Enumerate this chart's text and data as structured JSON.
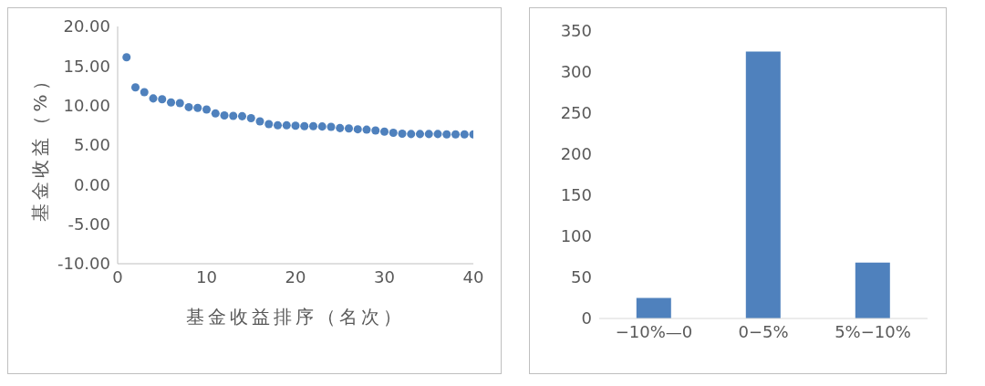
{
  "chart_data": [
    {
      "type": "scatter",
      "xlabel": "基金收益排序（名次）",
      "ylabel": "基金收益（%）",
      "x": [
        1,
        2,
        3,
        4,
        5,
        6,
        7,
        8,
        9,
        10,
        11,
        12,
        13,
        14,
        15,
        16,
        17,
        18,
        19,
        20,
        21,
        22,
        23,
        24,
        25,
        26,
        27,
        28,
        29,
        30,
        31,
        32,
        33,
        34,
        35,
        36,
        37,
        38,
        39,
        40
      ],
      "series": [
        {
          "color": "#4f81bd",
          "values": [
            16.1,
            12.3,
            11.7,
            10.9,
            10.8,
            10.4,
            10.3,
            9.8,
            9.7,
            9.5,
            9.0,
            8.75,
            8.7,
            8.65,
            8.4,
            8.0,
            7.65,
            7.5,
            7.5,
            7.45,
            7.4,
            7.4,
            7.35,
            7.3,
            7.15,
            7.1,
            7.0,
            6.95,
            6.85,
            6.7,
            6.55,
            6.45,
            6.4,
            6.4,
            6.4,
            6.4,
            6.35,
            6.35,
            6.35,
            6.35
          ]
        }
      ],
      "xlim": [
        0,
        40
      ],
      "xticks": [
        0,
        10,
        20,
        30,
        40
      ],
      "ylim": [
        -10,
        20
      ],
      "yticks": [
        {
          "value": -10,
          "label": "-10.00"
        },
        {
          "value": -5,
          "label": "-5.00"
        },
        {
          "value": 0,
          "label": "0.00"
        },
        {
          "value": 5,
          "label": "5.00"
        },
        {
          "value": 10,
          "label": "10.00"
        },
        {
          "value": 15,
          "label": "15.00"
        },
        {
          "value": 20,
          "label": "20.00"
        }
      ],
      "marker": "circle",
      "grid": false,
      "legend": false
    },
    {
      "type": "bar",
      "categories": [
        "−10%—0",
        "0−5%",
        "5%−10%"
      ],
      "values": [
        25,
        325,
        68
      ],
      "color": "#4f81bd",
      "ylim": [
        0,
        350
      ],
      "yticks": [
        0,
        50,
        100,
        150,
        200,
        250,
        300,
        350
      ],
      "grid": false,
      "legend": false
    }
  ]
}
